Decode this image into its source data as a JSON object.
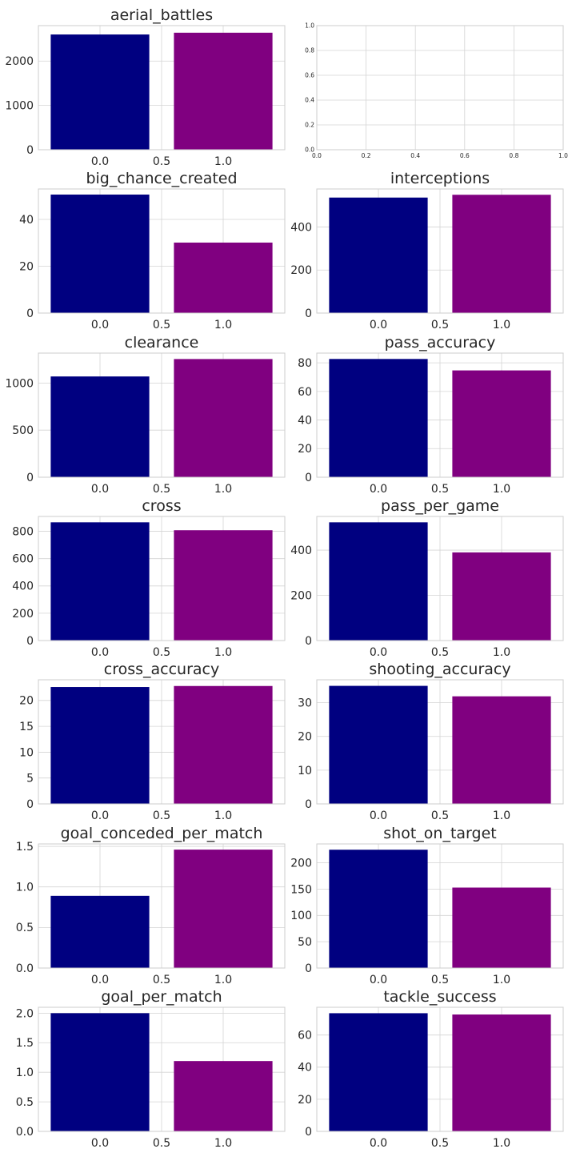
{
  "colors": {
    "bar_0": "#000080",
    "bar_1": "#800080",
    "grid": "#d4d4d4",
    "spine": "#cccccc",
    "text": "#262626"
  },
  "chart_data": [
    {
      "type": "bar",
      "title": "aerial_battles",
      "categories": [
        "0.0",
        "1.0"
      ],
      "x": [
        0,
        1
      ],
      "values": [
        2600,
        2640
      ],
      "ylim": [
        0,
        2800
      ],
      "xlim": [
        -0.5,
        1.5
      ],
      "yticks": [
        0,
        1000,
        2000
      ],
      "ytick_labels": [
        "0",
        "1000",
        "2000"
      ],
      "xticks": [
        0,
        0.5,
        1
      ],
      "xtick_labels": [
        "0.0",
        "0.5",
        "1.0"
      ],
      "grid": true
    },
    {
      "type": "empty",
      "title": "",
      "xlim": [
        0,
        1
      ],
      "ylim": [
        0,
        1
      ],
      "xticks": [
        0,
        0.2,
        0.4,
        0.6,
        0.8,
        1.0
      ],
      "xtick_labels": [
        "0.0",
        "0.2",
        "0.4",
        "0.6",
        "0.8",
        "1.0"
      ],
      "yticks": [
        0,
        0.2,
        0.4,
        0.6,
        0.8,
        1.0
      ],
      "ytick_labels": [
        "0.0",
        "0.2",
        "0.4",
        "0.6",
        "0.8",
        "1.0"
      ],
      "grid": true
    },
    {
      "type": "bar",
      "title": "big_chance_created",
      "categories": [
        "0.0",
        "1.0"
      ],
      "x": [
        0,
        1
      ],
      "values": [
        50.6,
        30.1
      ],
      "ylim": [
        0,
        53
      ],
      "xlim": [
        -0.5,
        1.5
      ],
      "yticks": [
        0,
        20,
        40
      ],
      "ytick_labels": [
        "0",
        "20",
        "40"
      ],
      "xticks": [
        0,
        0.5,
        1
      ],
      "xtick_labels": [
        "0.0",
        "0.5",
        "1.0"
      ],
      "grid": true
    },
    {
      "type": "bar",
      "title": "interceptions",
      "categories": [
        "0.0",
        "1.0"
      ],
      "x": [
        0,
        1
      ],
      "values": [
        537,
        550
      ],
      "ylim": [
        0,
        577
      ],
      "xlim": [
        -0.5,
        1.5
      ],
      "yticks": [
        0,
        200,
        400
      ],
      "ytick_labels": [
        "0",
        "200",
        "400"
      ],
      "xticks": [
        0,
        0.5,
        1
      ],
      "xtick_labels": [
        "0.0",
        "0.5",
        "1.0"
      ],
      "grid": true
    },
    {
      "type": "bar",
      "title": "clearance",
      "categories": [
        "0.0",
        "1.0"
      ],
      "x": [
        0,
        1
      ],
      "values": [
        1070,
        1255
      ],
      "ylim": [
        0,
        1318
      ],
      "xlim": [
        -0.5,
        1.5
      ],
      "yticks": [
        0,
        500,
        1000
      ],
      "ytick_labels": [
        "0",
        "500",
        "1000"
      ],
      "xticks": [
        0,
        0.5,
        1
      ],
      "xtick_labels": [
        "0.0",
        "0.5",
        "1.0"
      ],
      "grid": true
    },
    {
      "type": "bar",
      "title": "pass_accuracy",
      "categories": [
        "0.0",
        "1.0"
      ],
      "x": [
        0,
        1
      ],
      "values": [
        82.7,
        74.7
      ],
      "ylim": [
        0,
        86.8
      ],
      "xlim": [
        -0.5,
        1.5
      ],
      "yticks": [
        0,
        20,
        40,
        60,
        80
      ],
      "ytick_labels": [
        "0",
        "20",
        "40",
        "60",
        "80"
      ],
      "xticks": [
        0,
        0.5,
        1
      ],
      "xtick_labels": [
        "0.0",
        "0.5",
        "1.0"
      ],
      "grid": true
    },
    {
      "type": "bar",
      "title": "cross",
      "categories": [
        "0.0",
        "1.0"
      ],
      "x": [
        0,
        1
      ],
      "values": [
        866,
        808
      ],
      "ylim": [
        0,
        909
      ],
      "xlim": [
        -0.5,
        1.5
      ],
      "yticks": [
        0,
        200,
        400,
        600,
        800
      ],
      "ytick_labels": [
        "0",
        "200",
        "400",
        "600",
        "800"
      ],
      "xticks": [
        0,
        0.5,
        1
      ],
      "xtick_labels": [
        "0.0",
        "0.5",
        "1.0"
      ],
      "grid": true
    },
    {
      "type": "bar",
      "title": "pass_per_game",
      "categories": [
        "0.0",
        "1.0"
      ],
      "x": [
        0,
        1
      ],
      "values": [
        523,
        390
      ],
      "ylim": [
        0,
        549
      ],
      "xlim": [
        -0.5,
        1.5
      ],
      "yticks": [
        0,
        200,
        400
      ],
      "ytick_labels": [
        "0",
        "200",
        "400"
      ],
      "xticks": [
        0,
        0.5,
        1
      ],
      "xtick_labels": [
        "0.0",
        "0.5",
        "1.0"
      ],
      "grid": true
    },
    {
      "type": "bar",
      "title": "cross_accuracy",
      "categories": [
        "0.0",
        "1.0"
      ],
      "x": [
        0,
        1
      ],
      "values": [
        22.6,
        22.8
      ],
      "ylim": [
        0,
        24
      ],
      "xlim": [
        -0.5,
        1.5
      ],
      "yticks": [
        0,
        5,
        10,
        15,
        20
      ],
      "ytick_labels": [
        "0",
        "5",
        "10",
        "15",
        "20"
      ],
      "xticks": [
        0,
        0.5,
        1
      ],
      "xtick_labels": [
        "0.0",
        "0.5",
        "1.0"
      ],
      "grid": true
    },
    {
      "type": "bar",
      "title": "shooting_accuracy",
      "categories": [
        "0.0",
        "1.0"
      ],
      "x": [
        0,
        1
      ],
      "values": [
        35,
        31.9
      ],
      "ylim": [
        0,
        36.8
      ],
      "xlim": [
        -0.5,
        1.5
      ],
      "yticks": [
        0,
        10,
        20,
        30
      ],
      "ytick_labels": [
        "0",
        "10",
        "20",
        "30"
      ],
      "xticks": [
        0,
        0.5,
        1
      ],
      "xtick_labels": [
        "0.0",
        "0.5",
        "1.0"
      ],
      "grid": true
    },
    {
      "type": "bar",
      "title": "goal_conceded_per_match",
      "categories": [
        "0.0",
        "1.0"
      ],
      "x": [
        0,
        1
      ],
      "values": [
        0.89,
        1.46
      ],
      "ylim": [
        0,
        1.53
      ],
      "xlim": [
        -0.5,
        1.5
      ],
      "yticks": [
        0,
        0.5,
        1.0,
        1.5
      ],
      "ytick_labels": [
        "0.0",
        "0.5",
        "1.0",
        "1.5"
      ],
      "xticks": [
        0,
        0.5,
        1
      ],
      "xtick_labels": [
        "0.0",
        "0.5",
        "1.0"
      ],
      "grid": true
    },
    {
      "type": "bar",
      "title": "shot_on_target",
      "categories": [
        "0.0",
        "1.0"
      ],
      "x": [
        0,
        1
      ],
      "values": [
        225,
        153
      ],
      "ylim": [
        0,
        236
      ],
      "xlim": [
        -0.5,
        1.5
      ],
      "yticks": [
        0,
        50,
        100,
        150,
        200
      ],
      "ytick_labels": [
        "0",
        "50",
        "100",
        "150",
        "200"
      ],
      "xticks": [
        0,
        0.5,
        1
      ],
      "xtick_labels": [
        "0.0",
        "0.5",
        "1.0"
      ],
      "grid": true
    },
    {
      "type": "bar",
      "title": "goal_per_match",
      "categories": [
        "0.0",
        "1.0"
      ],
      "x": [
        0,
        1
      ],
      "values": [
        2.0,
        1.19
      ],
      "ylim": [
        0,
        2.1
      ],
      "xlim": [
        -0.5,
        1.5
      ],
      "yticks": [
        0,
        0.5,
        1.0,
        1.5,
        2.0
      ],
      "ytick_labels": [
        "0.0",
        "0.5",
        "1.0",
        "1.5",
        "2.0"
      ],
      "xticks": [
        0,
        0.5,
        1
      ],
      "xtick_labels": [
        "0.0",
        "0.5",
        "1.0"
      ],
      "grid": true
    },
    {
      "type": "bar",
      "title": "tackle_success",
      "categories": [
        "0.0",
        "1.0"
      ],
      "x": [
        0,
        1
      ],
      "values": [
        73.6,
        72.8
      ],
      "ylim": [
        0,
        77.3
      ],
      "xlim": [
        -0.5,
        1.5
      ],
      "yticks": [
        0,
        20,
        40,
        60
      ],
      "ytick_labels": [
        "0",
        "20",
        "40",
        "60"
      ],
      "xticks": [
        0,
        0.5,
        1
      ],
      "xtick_labels": [
        "0.0",
        "0.5",
        "1.0"
      ],
      "grid": true
    }
  ]
}
